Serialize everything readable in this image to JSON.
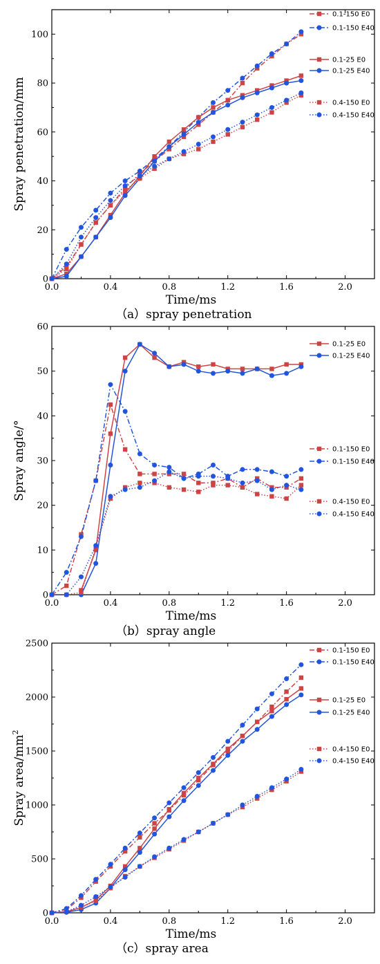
{
  "colors": {
    "red": "#cc4444",
    "blue": "#2255dd",
    "axis": "#000000"
  },
  "chart_data": [
    {
      "type": "line",
      "caption": "（a）spray penetration",
      "xlabel": "Time/ms",
      "ylabel": "Spray penetration/mm",
      "xlim": [
        0,
        2.2
      ],
      "ylim": [
        0,
        110
      ],
      "xticks": [
        0.0,
        0.4,
        0.8,
        1.2,
        1.6,
        2.0
      ],
      "yticks": [
        0,
        20,
        40,
        60,
        80,
        100
      ],
      "xtick_labels": [
        "0.0",
        "0.4",
        "0.8",
        "1.2",
        "1.6",
        "2.0"
      ],
      "ytick_labels": [
        "0",
        "20",
        "40",
        "60",
        "80",
        "100"
      ],
      "grid": false,
      "legend_position": "top-right",
      "legend_groups": [
        [
          0,
          1
        ],
        [
          2,
          3
        ],
        [
          4,
          5
        ]
      ],
      "series": [
        {
          "name": "0.1-150 E0",
          "color": "#cc4444",
          "marker": "square",
          "dash": "dashdot",
          "x": [
            0,
            0.1,
            0.2,
            0.3,
            0.4,
            0.5,
            0.6,
            0.7,
            0.8,
            0.9,
            1.0,
            1.1,
            1.2,
            1.3,
            1.4,
            1.5,
            1.6,
            1.7
          ],
          "y": [
            0,
            5,
            14,
            23,
            30,
            37,
            43,
            48,
            53,
            58,
            63,
            68,
            73,
            80,
            86,
            91,
            96,
            100
          ]
        },
        {
          "name": "0.1-150 E40",
          "color": "#2255dd",
          "marker": "circle",
          "dash": "dashdot",
          "x": [
            0,
            0.1,
            0.2,
            0.3,
            0.4,
            0.5,
            0.6,
            0.7,
            0.8,
            0.9,
            1.0,
            1.1,
            1.2,
            1.3,
            1.4,
            1.5,
            1.6,
            1.7
          ],
          "y": [
            0,
            12,
            21,
            28,
            35,
            40,
            44,
            49,
            54,
            60,
            66,
            72,
            77,
            82,
            87,
            92,
            96,
            101
          ]
        },
        {
          "name": "0.1-25 E0",
          "color": "#cc4444",
          "marker": "square",
          "dash": "solid",
          "x": [
            0,
            0.1,
            0.2,
            0.3,
            0.4,
            0.5,
            0.6,
            0.7,
            0.8,
            0.9,
            1.0,
            1.1,
            1.2,
            1.3,
            1.4,
            1.5,
            1.6,
            1.7
          ],
          "y": [
            0,
            2,
            9,
            17,
            26,
            35,
            42,
            50,
            56,
            61,
            66,
            70,
            73,
            75,
            77,
            79,
            81,
            83
          ]
        },
        {
          "name": "0.1-25 E40",
          "color": "#2255dd",
          "marker": "circle",
          "dash": "solid",
          "x": [
            0,
            0.1,
            0.2,
            0.3,
            0.4,
            0.5,
            0.6,
            0.7,
            0.8,
            0.9,
            1.0,
            1.1,
            1.2,
            1.3,
            1.4,
            1.5,
            1.6,
            1.7
          ],
          "y": [
            0,
            1,
            9,
            17,
            25,
            34,
            41,
            48,
            54,
            59,
            64,
            68,
            71,
            74,
            76,
            78,
            80,
            81
          ]
        },
        {
          "name": "0.4-150 E0",
          "color": "#cc4444",
          "marker": "square",
          "dash": "dot",
          "x": [
            0,
            0.1,
            0.2,
            0.3,
            0.4,
            0.5,
            0.6,
            0.7,
            0.8,
            0.9,
            1.0,
            1.1,
            1.2,
            1.3,
            1.4,
            1.5,
            1.6,
            1.7
          ],
          "y": [
            0,
            4,
            14,
            23,
            30,
            36,
            41,
            45,
            49,
            51,
            53,
            56,
            59,
            62,
            65,
            68,
            72,
            75
          ]
        },
        {
          "name": "0.4-150 E40",
          "color": "#2255dd",
          "marker": "circle",
          "dash": "dot",
          "x": [
            0,
            0.1,
            0.2,
            0.3,
            0.4,
            0.5,
            0.6,
            0.7,
            0.8,
            0.9,
            1.0,
            1.1,
            1.2,
            1.3,
            1.4,
            1.5,
            1.6,
            1.7
          ],
          "y": [
            0,
            6,
            17,
            25,
            32,
            38,
            42,
            46,
            49,
            52,
            55,
            58,
            61,
            64,
            67,
            70,
            73,
            76
          ]
        }
      ]
    },
    {
      "type": "line",
      "caption": "（b）spray angle",
      "xlabel": "Time/ms",
      "ylabel": "Spray angle/°",
      "xlim": [
        0,
        2.2
      ],
      "ylim": [
        0,
        60
      ],
      "xticks": [
        0.0,
        0.4,
        0.8,
        1.2,
        1.6,
        2.0
      ],
      "yticks": [
        0,
        10,
        20,
        30,
        40,
        50,
        60
      ],
      "xtick_labels": [
        "0.0",
        "0.4",
        "0.8",
        "1.2",
        "1.6",
        "2.0"
      ],
      "ytick_labels": [
        "0",
        "10",
        "20",
        "30",
        "40",
        "50",
        "60"
      ],
      "grid": false,
      "legend_position": "right",
      "legend_groups": [
        [
          0,
          1
        ],
        [
          2,
          3
        ],
        [
          4,
          5
        ]
      ],
      "series": [
        {
          "name": "0.1-25 E0",
          "color": "#cc4444",
          "marker": "square",
          "dash": "solid",
          "x": [
            0.2,
            0.3,
            0.4,
            0.5,
            0.6,
            0.7,
            0.8,
            0.9,
            1.0,
            1.1,
            1.2,
            1.3,
            1.4,
            1.5,
            1.6,
            1.7
          ],
          "y": [
            1,
            10,
            36,
            53,
            56,
            53,
            51,
            52,
            51,
            51.5,
            50.5,
            50.5,
            50.5,
            50.5,
            51.5,
            51.5
          ]
        },
        {
          "name": "0.1-25 E40",
          "color": "#2255dd",
          "marker": "circle",
          "dash": "solid",
          "x": [
            0.2,
            0.3,
            0.4,
            0.5,
            0.6,
            0.7,
            0.8,
            0.9,
            1.0,
            1.1,
            1.2,
            1.3,
            1.4,
            1.5,
            1.6,
            1.7
          ],
          "y": [
            0,
            7,
            29,
            50,
            56,
            54,
            51,
            51.5,
            50,
            49.5,
            50,
            49.5,
            50.5,
            49,
            49.5,
            51
          ]
        },
        {
          "name": "0.1-150 E0",
          "color": "#cc4444",
          "marker": "square",
          "dash": "dashdot",
          "x": [
            0,
            0.1,
            0.2,
            0.3,
            0.4,
            0.5,
            0.6,
            0.7,
            0.8,
            0.9,
            1.0,
            1.1,
            1.2,
            1.3,
            1.4,
            1.5,
            1.6,
            1.7
          ],
          "y": [
            0,
            2,
            13.5,
            25.5,
            42.5,
            32.5,
            27,
            27,
            27,
            27,
            25,
            25,
            26,
            24,
            26,
            24,
            24,
            26
          ]
        },
        {
          "name": "0.1-150 E40",
          "color": "#2255dd",
          "marker": "circle",
          "dash": "dashdot",
          "x": [
            0,
            0.1,
            0.2,
            0.3,
            0.4,
            0.5,
            0.6,
            0.7,
            0.8,
            0.9,
            1.0,
            1.1,
            1.2,
            1.3,
            1.4,
            1.5,
            1.6,
            1.7
          ],
          "y": [
            0,
            5,
            13,
            25.5,
            47,
            41,
            31.5,
            29,
            28.5,
            26,
            27,
            29,
            26.5,
            28,
            28,
            27.5,
            26.5,
            28
          ]
        },
        {
          "name": "0.4-150 E0",
          "color": "#cc4444",
          "marker": "square",
          "dash": "dot",
          "x": [
            0,
            0.1,
            0.2,
            0.3,
            0.4,
            0.5,
            0.6,
            0.7,
            0.8,
            0.9,
            1.0,
            1.1,
            1.2,
            1.3,
            1.4,
            1.5,
            1.6,
            1.7
          ],
          "y": [
            0,
            0,
            0.5,
            10.5,
            21.5,
            24,
            25,
            25,
            24,
            23.5,
            23,
            24.5,
            24.5,
            24,
            22.5,
            22,
            21.5,
            24.5
          ]
        },
        {
          "name": "0.4-150 E40",
          "color": "#2255dd",
          "marker": "circle",
          "dash": "dot",
          "x": [
            0,
            0.1,
            0.2,
            0.3,
            0.4,
            0.5,
            0.6,
            0.7,
            0.8,
            0.9,
            1.0,
            1.1,
            1.2,
            1.3,
            1.4,
            1.5,
            1.6,
            1.7
          ],
          "y": [
            0,
            0,
            4,
            11,
            22,
            23.5,
            24,
            25.5,
            27.5,
            26,
            26.5,
            26.5,
            26,
            25,
            25.5,
            23.5,
            24.5,
            23.5
          ]
        }
      ]
    },
    {
      "type": "line",
      "caption": "（c）spray area",
      "xlabel": "Time/ms",
      "ylabel": "Spray area/mm",
      "ylabel_superscript": "2",
      "xlim": [
        0,
        2.2
      ],
      "ylim": [
        0,
        2500
      ],
      "xticks": [
        0.0,
        0.4,
        0.8,
        1.2,
        1.6,
        2.0
      ],
      "yticks": [
        0,
        500,
        1000,
        1500,
        2000,
        2500
      ],
      "xtick_labels": [
        "0.0",
        "0.4",
        "0.8",
        "1.2",
        "1.6",
        "2.0"
      ],
      "ytick_labels": [
        "0",
        "500",
        "1000",
        "1500",
        "2000",
        "2500"
      ],
      "grid": false,
      "legend_position": "top-right",
      "legend_groups": [
        [
          0,
          1
        ],
        [
          2,
          3
        ],
        [
          4,
          5
        ]
      ],
      "series": [
        {
          "name": "0.1-150 E0",
          "color": "#cc4444",
          "marker": "square",
          "dash": "dashdot",
          "x": [
            0,
            0.1,
            0.2,
            0.3,
            0.4,
            0.5,
            0.6,
            0.7,
            0.8,
            0.9,
            1.0,
            1.1,
            1.2,
            1.3,
            1.4,
            1.5,
            1.6,
            1.7
          ],
          "y": [
            0,
            30,
            140,
            290,
            430,
            570,
            700,
            830,
            950,
            1090,
            1230,
            1370,
            1500,
            1640,
            1770,
            1910,
            2050,
            2180
          ]
        },
        {
          "name": "0.1-150 E40",
          "color": "#2255dd",
          "marker": "circle",
          "dash": "dashdot",
          "x": [
            0,
            0.1,
            0.2,
            0.3,
            0.4,
            0.5,
            0.6,
            0.7,
            0.8,
            0.9,
            1.0,
            1.1,
            1.2,
            1.3,
            1.4,
            1.5,
            1.6,
            1.7
          ],
          "y": [
            0,
            40,
            160,
            310,
            450,
            600,
            740,
            880,
            1020,
            1160,
            1300,
            1440,
            1590,
            1740,
            1890,
            2030,
            2170,
            2300
          ]
        },
        {
          "name": "0.1-25 E0",
          "color": "#cc4444",
          "marker": "square",
          "dash": "solid",
          "x": [
            0,
            0.1,
            0.2,
            0.3,
            0.4,
            0.5,
            0.6,
            0.7,
            0.8,
            0.9,
            1.0,
            1.1,
            1.2,
            1.3,
            1.4,
            1.5,
            1.6,
            1.7
          ],
          "y": [
            0,
            10,
            50,
            120,
            250,
            430,
            600,
            780,
            960,
            1110,
            1250,
            1380,
            1520,
            1640,
            1770,
            1870,
            1980,
            2080
          ]
        },
        {
          "name": "0.1-25 E40",
          "color": "#2255dd",
          "marker": "circle",
          "dash": "solid",
          "x": [
            0,
            0.1,
            0.2,
            0.3,
            0.4,
            0.5,
            0.6,
            0.7,
            0.8,
            0.9,
            1.0,
            1.1,
            1.2,
            1.3,
            1.4,
            1.5,
            1.6,
            1.7
          ],
          "y": [
            0,
            5,
            30,
            90,
            230,
            400,
            560,
            730,
            890,
            1040,
            1180,
            1320,
            1460,
            1590,
            1700,
            1820,
            1930,
            2020
          ]
        },
        {
          "name": "0.4-150 E0",
          "color": "#cc4444",
          "marker": "square",
          "dash": "dot",
          "x": [
            0,
            0.1,
            0.2,
            0.3,
            0.4,
            0.5,
            0.6,
            0.7,
            0.8,
            0.9,
            1.0,
            1.1,
            1.2,
            1.3,
            1.4,
            1.5,
            1.6,
            1.7
          ],
          "y": [
            0,
            10,
            50,
            110,
            230,
            340,
            430,
            510,
            590,
            670,
            750,
            830,
            910,
            980,
            1060,
            1140,
            1220,
            1310
          ]
        },
        {
          "name": "0.4-150 E40",
          "color": "#2255dd",
          "marker": "circle",
          "dash": "dot",
          "x": [
            0,
            0.1,
            0.2,
            0.3,
            0.4,
            0.5,
            0.6,
            0.7,
            0.8,
            0.9,
            1.0,
            1.1,
            1.2,
            1.3,
            1.4,
            1.5,
            1.6,
            1.7
          ],
          "y": [
            0,
            10,
            70,
            150,
            240,
            330,
            430,
            520,
            600,
            680,
            750,
            830,
            910,
            1000,
            1080,
            1160,
            1240,
            1330
          ]
        }
      ]
    }
  ]
}
